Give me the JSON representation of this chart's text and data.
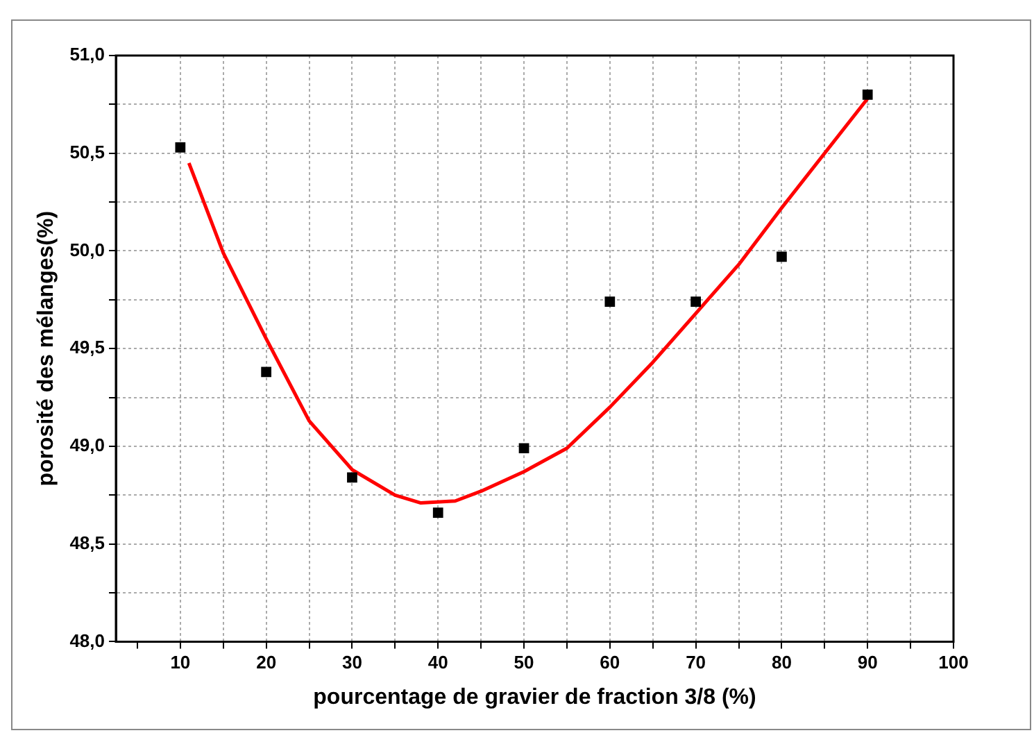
{
  "chart_data": {
    "type": "scatter",
    "xlabel": "pourcentage de gravier de fraction 3/8 (%)",
    "ylabel": "porosité des mélanges(%)",
    "xlim": [
      2.5,
      100
    ],
    "ylim": [
      48,
      51
    ],
    "xticks": [
      {
        "value": 5,
        "label": null
      },
      10,
      {
        "value": 15,
        "label": null
      },
      20,
      {
        "value": 25,
        "label": null
      },
      30,
      {
        "value": 35,
        "label": null
      },
      40,
      {
        "value": 45,
        "label": null
      },
      50,
      {
        "value": 55,
        "label": null
      },
      60,
      {
        "value": 65,
        "label": null
      },
      70,
      {
        "value": 75,
        "label": null
      },
      80,
      {
        "value": 85,
        "label": null
      },
      90,
      {
        "value": 95,
        "label": null
      },
      100
    ],
    "yticks": [
      {
        "value": 48,
        "label": "48,0"
      },
      {
        "value": 48.25,
        "label": null
      },
      {
        "value": 48.5,
        "label": "48,5"
      },
      {
        "value": 48.75,
        "label": null
      },
      {
        "value": 49,
        "label": "49,0"
      },
      {
        "value": 49.25,
        "label": null
      },
      {
        "value": 49.5,
        "label": "49,5"
      },
      {
        "value": 49.75,
        "label": null
      },
      {
        "value": 50,
        "label": "50,0"
      },
      {
        "value": 50.25,
        "label": null
      },
      {
        "value": 50.5,
        "label": "50,5"
      },
      {
        "value": 50.75,
        "label": null
      },
      {
        "value": 51,
        "label": "51,0"
      }
    ],
    "grid": true,
    "legend": false,
    "series": [
      {
        "type": "scatter",
        "color": "#000000",
        "marker": "square",
        "x": [
          10,
          20,
          30,
          40,
          50,
          60,
          70,
          80,
          90
        ],
        "values": [
          50.53,
          49.38,
          48.84,
          48.66,
          48.99,
          49.74,
          49.74,
          49.97,
          50.8
        ]
      },
      {
        "type": "line",
        "color": "#ff0000",
        "marker": "none",
        "line_style": "solid",
        "x": [
          11,
          15,
          20,
          25,
          30,
          35,
          38,
          42,
          45,
          50,
          55,
          60,
          65,
          70,
          75,
          80,
          85,
          90
        ],
        "values": [
          50.45,
          49.99,
          49.55,
          49.13,
          48.88,
          48.75,
          48.71,
          48.72,
          48.77,
          48.87,
          48.99,
          49.2,
          49.43,
          49.68,
          49.93,
          50.22,
          50.5,
          50.78
        ]
      }
    ]
  }
}
